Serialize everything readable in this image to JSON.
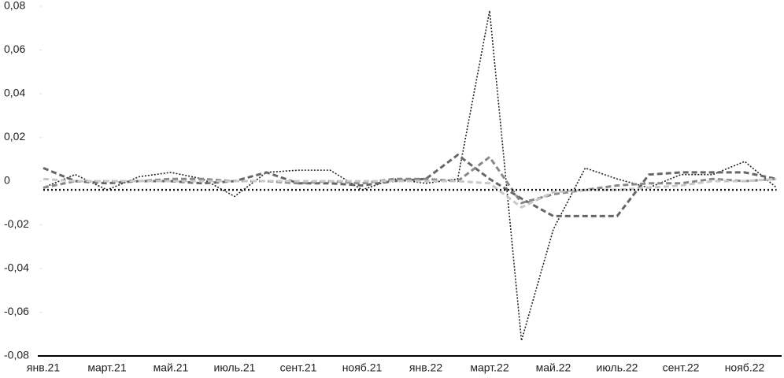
{
  "chart_data": {
    "type": "line",
    "categories": [
      "янв.21",
      null,
      "март.21",
      null,
      "май.21",
      null,
      "июль.21",
      null,
      "сент.21",
      null,
      "нояб.21",
      null,
      "янв.22",
      null,
      "март.22",
      null,
      "май.22",
      null,
      "июль.22",
      null,
      "сент.22",
      null,
      "нояб.22",
      null
    ],
    "ylim": [
      -0.08,
      0.08
    ],
    "yticks": [
      {
        "value": -0.08,
        "label": "-0,08"
      },
      {
        "value": -0.06,
        "label": "-0,06"
      },
      {
        "value": -0.04,
        "label": "-0,04"
      },
      {
        "value": -0.02,
        "label": "-0,02"
      },
      0,
      {
        "value": 0.02,
        "label": "0,02"
      },
      {
        "value": 0.04,
        "label": "0,04"
      },
      {
        "value": 0.06,
        "label": "0,06"
      },
      {
        "value": 0.08,
        "label": "0,08"
      }
    ],
    "grid": false,
    "series": [
      {
        "color": "#222222",
        "style": "dotted",
        "values": [
          -0.003,
          0.003,
          -0.004,
          0.002,
          0.004,
          0.001,
          -0.007,
          0.004,
          0.005,
          0.005,
          -0.004,
          0.001,
          -0.001,
          0.001,
          0.078,
          -0.073,
          -0.022,
          0.006,
          0.001,
          -0.003,
          0.003,
          0.003,
          0.009,
          -0.003
        ]
      },
      {
        "color": "#666666",
        "style": "dashed",
        "values": [
          0.006,
          0,
          -0.001,
          0,
          0,
          -0.001,
          0,
          0.004,
          -0.001,
          -0.001,
          -0.002,
          0,
          0.001,
          0.012,
          0.001,
          -0.008,
          -0.016,
          -0.016,
          -0.016,
          0.003,
          0.004,
          0.004,
          0.004,
          0.001
        ]
      },
      {
        "color": "#888888",
        "style": "dashed",
        "values": [
          -0.003,
          0,
          0,
          0,
          0.001,
          0.001,
          0,
          0,
          -0.001,
          0,
          -0.001,
          0.001,
          0.001,
          0,
          0.011,
          -0.01,
          -0.006,
          -0.004,
          -0.002,
          -0.001,
          -0.001,
          0.001,
          0,
          0.001
        ]
      },
      {
        "color": "#c8c8c8",
        "style": "dashed",
        "values": [
          0.001,
          0,
          0,
          0,
          0,
          0,
          0,
          0,
          0,
          0,
          0,
          0,
          0,
          0,
          -0.001,
          -0.012,
          -0.005,
          -0.004,
          -0.004,
          -0.003,
          -0.002,
          0,
          0,
          0.001
        ]
      },
      {
        "color": "#111111",
        "style": "dotted-heavy",
        "values": [
          -0.004,
          -0.004,
          -0.004,
          -0.004,
          -0.004,
          -0.004,
          -0.004,
          -0.004,
          -0.004,
          -0.004,
          -0.004,
          -0.004,
          -0.004,
          -0.004,
          -0.004,
          -0.004,
          -0.004,
          -0.004,
          -0.004,
          -0.004,
          -0.004,
          -0.004,
          -0.004,
          -0.004
        ]
      }
    ]
  }
}
